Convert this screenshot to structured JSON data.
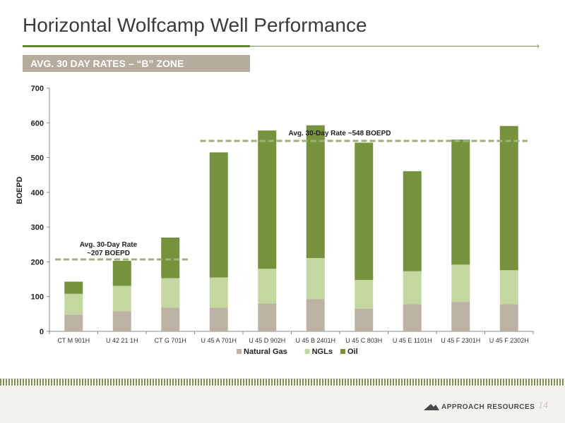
{
  "slide": {
    "title": "Horizontal Wolfcamp Well Performance",
    "zone_label": "AVG. 30 DAY RATES – “B” ZONE",
    "company": "APPROACH RESOURCES",
    "page_number": "14"
  },
  "chart_data": {
    "type": "bar",
    "stacked": true,
    "title": "",
    "xlabel": "",
    "ylabel": "BOEPD",
    "ylim": [
      0,
      700
    ],
    "yticks": [
      0,
      100,
      200,
      300,
      400,
      500,
      600,
      700
    ],
    "grid": false,
    "legend": "bottom",
    "categories": [
      "CT M 901H",
      "U 42 21 1H",
      "CT G 701H",
      "U 45 A 701H",
      "U 45 D 902H",
      "U 45 B 2401H",
      "U 45 C 803H",
      "U 45 E 1101H",
      "U 45 F 2301H",
      "U 45 F 2302H"
    ],
    "series": [
      {
        "name": "Natural Gas",
        "color": "#bcb2a3",
        "values": [
          48,
          58,
          68,
          68,
          80,
          93,
          65,
          78,
          85,
          78
        ]
      },
      {
        "name": "NGLs",
        "color": "#c5d7a0",
        "values": [
          60,
          73,
          85,
          87,
          100,
          118,
          83,
          95,
          107,
          98
        ]
      },
      {
        "name": "Oil",
        "color": "#76923c",
        "values": [
          35,
          72,
          117,
          360,
          398,
          382,
          395,
          288,
          360,
          415
        ]
      }
    ],
    "reference_lines": [
      {
        "value": 207,
        "from_index": 0,
        "to_index": 2,
        "label_lines": [
          "Avg. 30-Day Rate",
          "~207 BOEPD"
        ]
      },
      {
        "value": 548,
        "from_index": 3,
        "to_index": 9,
        "label_lines": [
          "Avg. 30-Day Rate ~548 BOEPD"
        ]
      }
    ],
    "reference_line_color": "#9cb37a"
  }
}
